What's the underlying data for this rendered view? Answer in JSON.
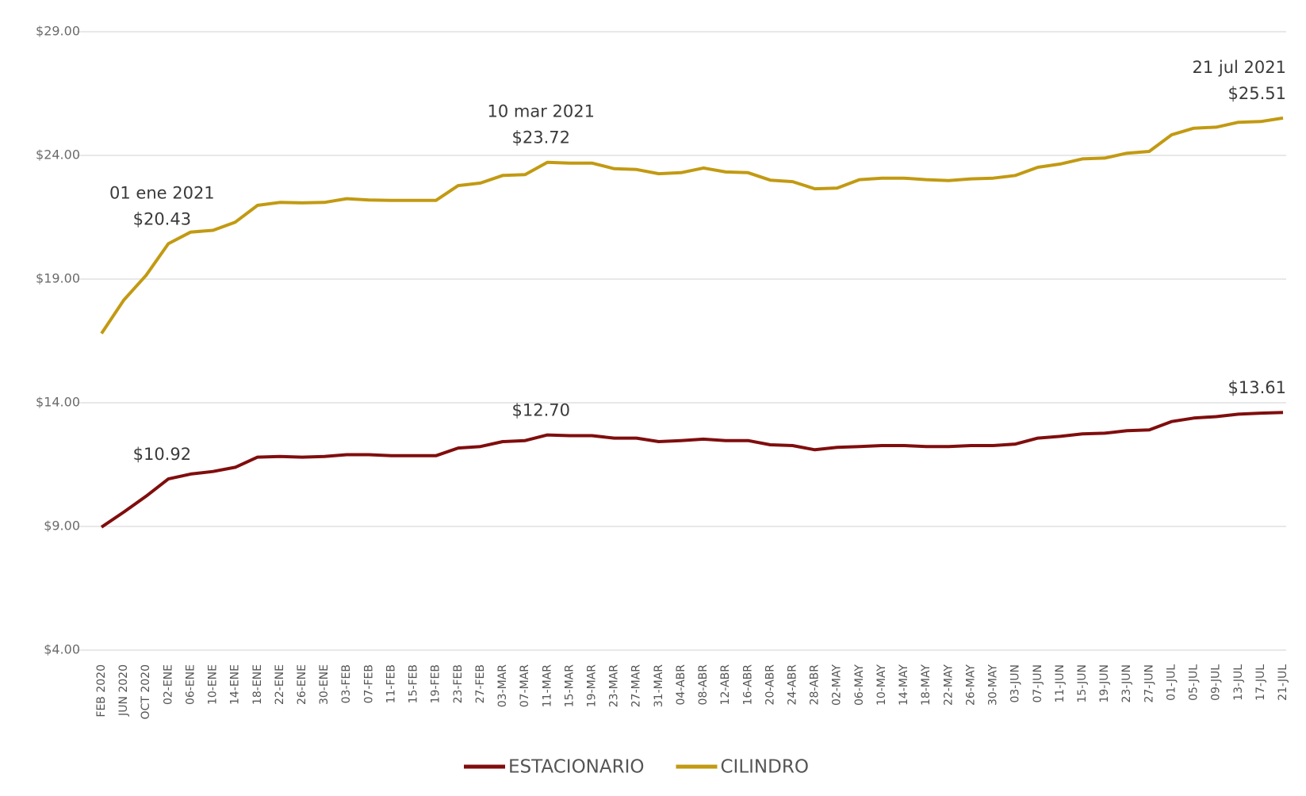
{
  "chart_data": {
    "type": "line",
    "categories": [
      "FEB 2020",
      "JUN 2020",
      "OCT 2020",
      "02-ENE",
      "06-ENE",
      "10-ENE",
      "14-ENE",
      "18-ENE",
      "22-ENE",
      "26-ENE",
      "30-ENE",
      "03-FEB",
      "07-FEB",
      "11-FEB",
      "15-FEB",
      "19-FEB",
      "23-FEB",
      "27-FEB",
      "03-MAR",
      "07-MAR",
      "11-MAR",
      "15-MAR",
      "19-MAR",
      "23-MAR",
      "27-MAR",
      "31-MAR",
      "04-ABR",
      "08-ABR",
      "12-ABR",
      "16-ABR",
      "20-ABR",
      "24-ABR",
      "28-ABR",
      "02-MAY",
      "06-MAY",
      "10-MAY",
      "14-MAY",
      "18-MAY",
      "22-MAY",
      "26-MAY",
      "30-MAY",
      "03-JUN",
      "07-JUN",
      "11-JUN",
      "15-JUN",
      "19-JUN",
      "23-JUN",
      "27-JUN",
      "01-JUL",
      "05-JUL",
      "09-JUL",
      "13-JUL",
      "17-JUL",
      "21-JUL"
    ],
    "series": [
      {
        "name": "ESTACIONARIO",
        "color": "#800d0d",
        "values": [
          8.97,
          9.58,
          10.22,
          10.92,
          11.12,
          11.22,
          11.39,
          11.8,
          11.83,
          11.8,
          11.83,
          11.9,
          11.9,
          11.86,
          11.86,
          11.86,
          12.17,
          12.23,
          12.43,
          12.47,
          12.7,
          12.67,
          12.67,
          12.57,
          12.57,
          12.43,
          12.47,
          12.53,
          12.47,
          12.47,
          12.3,
          12.27,
          12.1,
          12.2,
          12.23,
          12.27,
          12.27,
          12.23,
          12.23,
          12.27,
          12.27,
          12.33,
          12.57,
          12.64,
          12.74,
          12.77,
          12.87,
          12.9,
          13.24,
          13.38,
          13.44,
          13.54,
          13.58,
          13.61
        ],
        "value_labels": [
          null,
          null,
          null,
          "$10.92",
          null,
          null,
          null,
          null,
          null,
          null,
          null,
          null,
          null,
          null,
          null,
          null,
          null,
          null,
          null,
          null,
          "$12.70",
          null,
          null,
          null,
          null,
          null,
          null,
          null,
          null,
          null,
          null,
          null,
          null,
          null,
          null,
          null,
          null,
          null,
          null,
          null,
          null,
          null,
          null,
          null,
          null,
          null,
          null,
          null,
          null,
          null,
          null,
          null,
          null,
          "$13.61"
        ]
      },
      {
        "name": "CILINDRO",
        "color": "#c29a12",
        "values": [
          16.8,
          18.15,
          19.15,
          20.43,
          20.9,
          20.97,
          21.3,
          21.98,
          22.1,
          22.08,
          22.1,
          22.25,
          22.2,
          22.18,
          22.18,
          22.18,
          22.78,
          22.88,
          23.19,
          23.22,
          23.72,
          23.69,
          23.69,
          23.46,
          23.43,
          23.26,
          23.3,
          23.49,
          23.33,
          23.3,
          23.0,
          22.94,
          22.65,
          22.68,
          23.02,
          23.08,
          23.08,
          23.02,
          22.98,
          23.05,
          23.08,
          23.19,
          23.52,
          23.65,
          23.86,
          23.89,
          24.09,
          24.16,
          24.83,
          25.1,
          25.14,
          25.34,
          25.37,
          25.51
        ],
        "value_labels": [
          null,
          null,
          null,
          "$20.43",
          null,
          null,
          null,
          null,
          null,
          null,
          null,
          null,
          null,
          null,
          null,
          null,
          null,
          null,
          null,
          null,
          "$23.72",
          null,
          null,
          null,
          null,
          null,
          null,
          null,
          null,
          null,
          null,
          null,
          null,
          null,
          null,
          null,
          null,
          null,
          null,
          null,
          null,
          null,
          null,
          null,
          null,
          null,
          null,
          null,
          null,
          null,
          null,
          null,
          null,
          "$25.51"
        ]
      }
    ],
    "annotations": [
      "01 ene 2021",
      "10 mar 2021",
      "21 jul 2021"
    ],
    "ylim": [
      4,
      29
    ],
    "yticks": [
      {
        "value": 4,
        "label": "$4.00"
      },
      {
        "value": 9,
        "label": "$9.00"
      },
      {
        "value": 14,
        "label": "$14.00"
      },
      {
        "value": 19,
        "label": "$19.00"
      },
      {
        "value": 24,
        "label": "$24.00"
      },
      {
        "value": 29,
        "label": "$29.00"
      }
    ],
    "grid": true,
    "legend": "bottom"
  }
}
